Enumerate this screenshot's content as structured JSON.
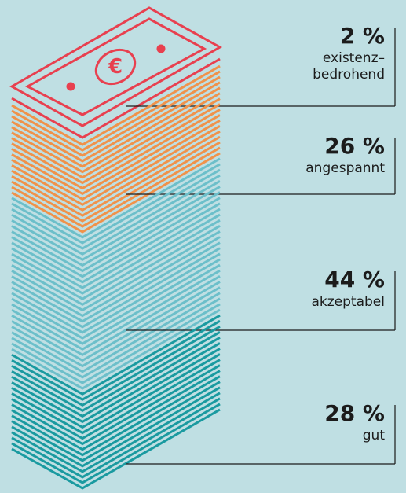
{
  "chart_data": {
    "type": "pictorial-stack",
    "categories": [
      "existenz–\nbedrohend",
      "angespannt",
      "akzeptabel",
      "gut"
    ],
    "values": [
      2,
      26,
      44,
      28
    ],
    "value_labels": [
      "2 %",
      "26 %",
      "44 %",
      "28 %"
    ],
    "colors": [
      "#e8404f",
      "#f0924a",
      "#6cbfca",
      "#1a9aa0"
    ]
  }
}
